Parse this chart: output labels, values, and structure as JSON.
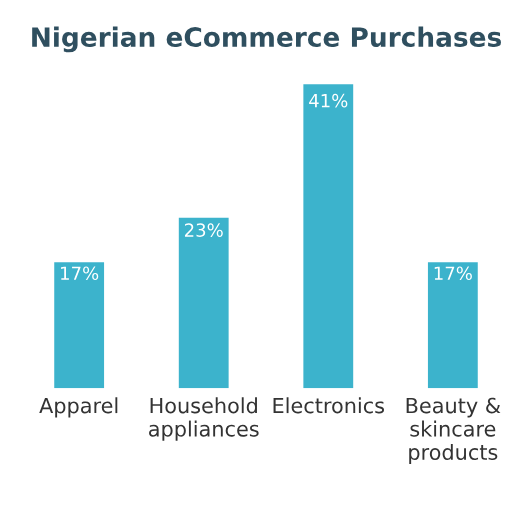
{
  "chart_data": {
    "type": "bar",
    "title": "Nigerian eCommerce Purchases",
    "categories": [
      "Apparel",
      "Household\nappliances",
      "Electronics",
      "Beauty &\nskincare\nproducts"
    ],
    "values": [
      17,
      23,
      41,
      17
    ],
    "value_labels": [
      "17%",
      "23%",
      "41%",
      "17%"
    ],
    "color": "#3cb3cc"
  }
}
